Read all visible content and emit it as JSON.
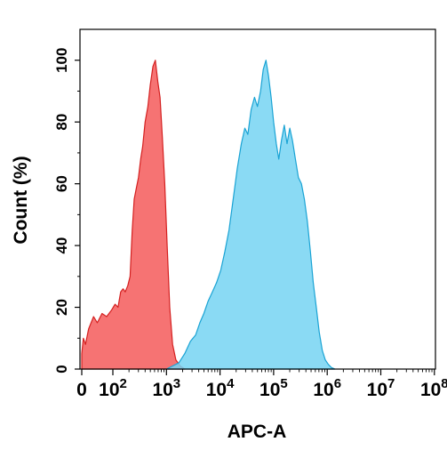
{
  "chart_data": {
    "type": "area",
    "xlabel": "APC-A",
    "ylabel": "Count (%)",
    "xscale": "biexponential",
    "xlim": [
      0,
      100000000
    ],
    "ylim": [
      0,
      110
    ],
    "grid": false,
    "legend": "none",
    "x_ticks": [
      {
        "value": 0,
        "base": "0",
        "exp": ""
      },
      {
        "value": 100,
        "base": "10",
        "exp": "2"
      },
      {
        "value": 1000,
        "base": "10",
        "exp": "3"
      },
      {
        "value": 10000,
        "base": "10",
        "exp": "4"
      },
      {
        "value": 100000,
        "base": "10",
        "exp": "5"
      },
      {
        "value": 1000000,
        "base": "10",
        "exp": "6"
      },
      {
        "value": 10000000,
        "base": "10",
        "exp": "7"
      },
      {
        "value": 100000000,
        "base": "10",
        "exp": "8"
      }
    ],
    "y_ticks": [
      0,
      20,
      40,
      60,
      80,
      100
    ],
    "series": [
      {
        "color": "#f45b5b",
        "edge_color": "#d42020",
        "points": [
          [
            0,
            5
          ],
          [
            5,
            10
          ],
          [
            12,
            8
          ],
          [
            22,
            13
          ],
          [
            38,
            17
          ],
          [
            50,
            15
          ],
          [
            65,
            18
          ],
          [
            80,
            17
          ],
          [
            95,
            19
          ],
          [
            110,
            21
          ],
          [
            125,
            20
          ],
          [
            140,
            25
          ],
          [
            155,
            26
          ],
          [
            170,
            25
          ],
          [
            190,
            27
          ],
          [
            210,
            30
          ],
          [
            230,
            45
          ],
          [
            250,
            55
          ],
          [
            270,
            58
          ],
          [
            300,
            62
          ],
          [
            330,
            68
          ],
          [
            360,
            72
          ],
          [
            400,
            80
          ],
          [
            450,
            85
          ],
          [
            500,
            92
          ],
          [
            560,
            98
          ],
          [
            620,
            100
          ],
          [
            690,
            93
          ],
          [
            760,
            88
          ],
          [
            840,
            75
          ],
          [
            930,
            60
          ],
          [
            1030,
            40
          ],
          [
            1150,
            20
          ],
          [
            1300,
            8
          ],
          [
            1500,
            3
          ],
          [
            1800,
            1
          ],
          [
            2200,
            0
          ]
        ]
      },
      {
        "color": "#75d3f2",
        "edge_color": "#1aa3d4",
        "points": [
          [
            1000,
            0
          ],
          [
            1300,
            1
          ],
          [
            1700,
            2
          ],
          [
            2200,
            5
          ],
          [
            2800,
            9
          ],
          [
            3500,
            11
          ],
          [
            4200,
            15
          ],
          [
            5000,
            18
          ],
          [
            6000,
            22
          ],
          [
            7200,
            25
          ],
          [
            8600,
            28
          ],
          [
            10300,
            32
          ],
          [
            12300,
            38
          ],
          [
            14700,
            45
          ],
          [
            17600,
            55
          ],
          [
            21000,
            65
          ],
          [
            25000,
            73
          ],
          [
            29000,
            78
          ],
          [
            33000,
            76
          ],
          [
            38000,
            84
          ],
          [
            44000,
            88
          ],
          [
            50000,
            85
          ],
          [
            57000,
            90
          ],
          [
            64000,
            97
          ],
          [
            72000,
            100
          ],
          [
            80000,
            95
          ],
          [
            90000,
            88
          ],
          [
            100000,
            80
          ],
          [
            112000,
            73
          ],
          [
            125000,
            68
          ],
          [
            140000,
            74
          ],
          [
            158000,
            79
          ],
          [
            178000,
            73
          ],
          [
            200000,
            78
          ],
          [
            225000,
            74
          ],
          [
            255000,
            68
          ],
          [
            290000,
            62
          ],
          [
            330000,
            60
          ],
          [
            375000,
            55
          ],
          [
            425000,
            48
          ],
          [
            485000,
            38
          ],
          [
            550000,
            28
          ],
          [
            625000,
            20
          ],
          [
            710000,
            12
          ],
          [
            810000,
            6
          ],
          [
            920000,
            3
          ],
          [
            1050000,
            1.5
          ],
          [
            1200000,
            0.5
          ],
          [
            1400000,
            0
          ]
        ]
      }
    ]
  }
}
